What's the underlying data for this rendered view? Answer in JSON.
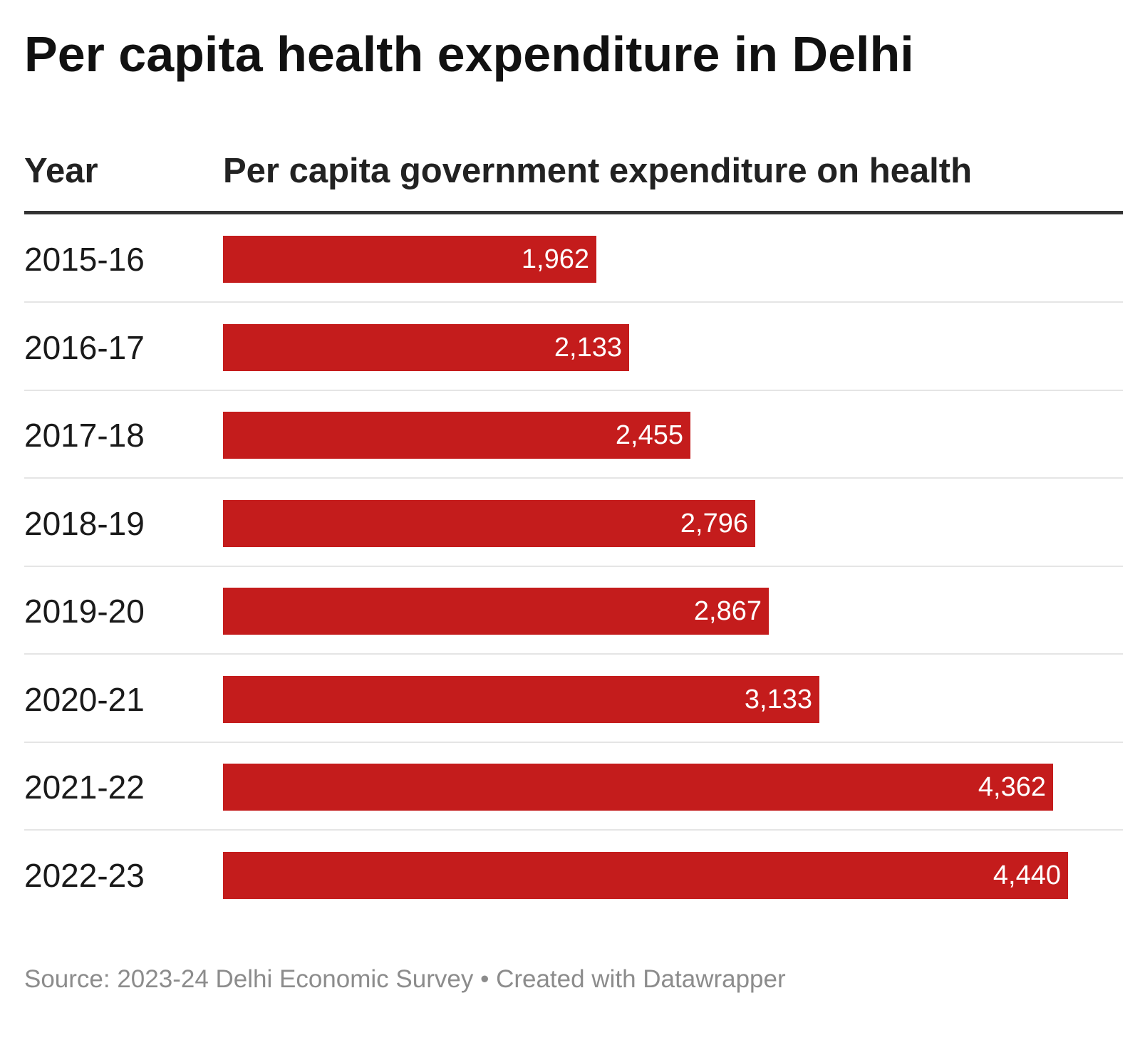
{
  "title": "Per capita health expenditure in Delhi",
  "columns": {
    "year": "Year",
    "value": "Per capita government expenditure on health"
  },
  "footer": {
    "source": "Source: 2023-24 Delhi Economic Survey",
    "separator": "•",
    "credit": "Created with Datawrapper"
  },
  "colors": {
    "bar": "#c41c1c",
    "label_on_bar": "#ffffff"
  },
  "chart_data": {
    "type": "bar",
    "orientation": "horizontal",
    "title": "Per capita health expenditure in Delhi",
    "xlabel": "Per capita government expenditure on health",
    "ylabel": "Year",
    "categories": [
      "2015-16",
      "2016-17",
      "2017-18",
      "2018-19",
      "2019-20",
      "2020-21",
      "2021-22",
      "2022-23"
    ],
    "values": [
      1962,
      2133,
      2455,
      2796,
      2867,
      3133,
      4362,
      4440
    ],
    "value_labels": [
      "1,962",
      "2,133",
      "2,455",
      "2,796",
      "2,867",
      "3,133",
      "4,362",
      "4,440"
    ],
    "xlim": [
      0,
      4650
    ],
    "grid": false,
    "legend": "none"
  }
}
